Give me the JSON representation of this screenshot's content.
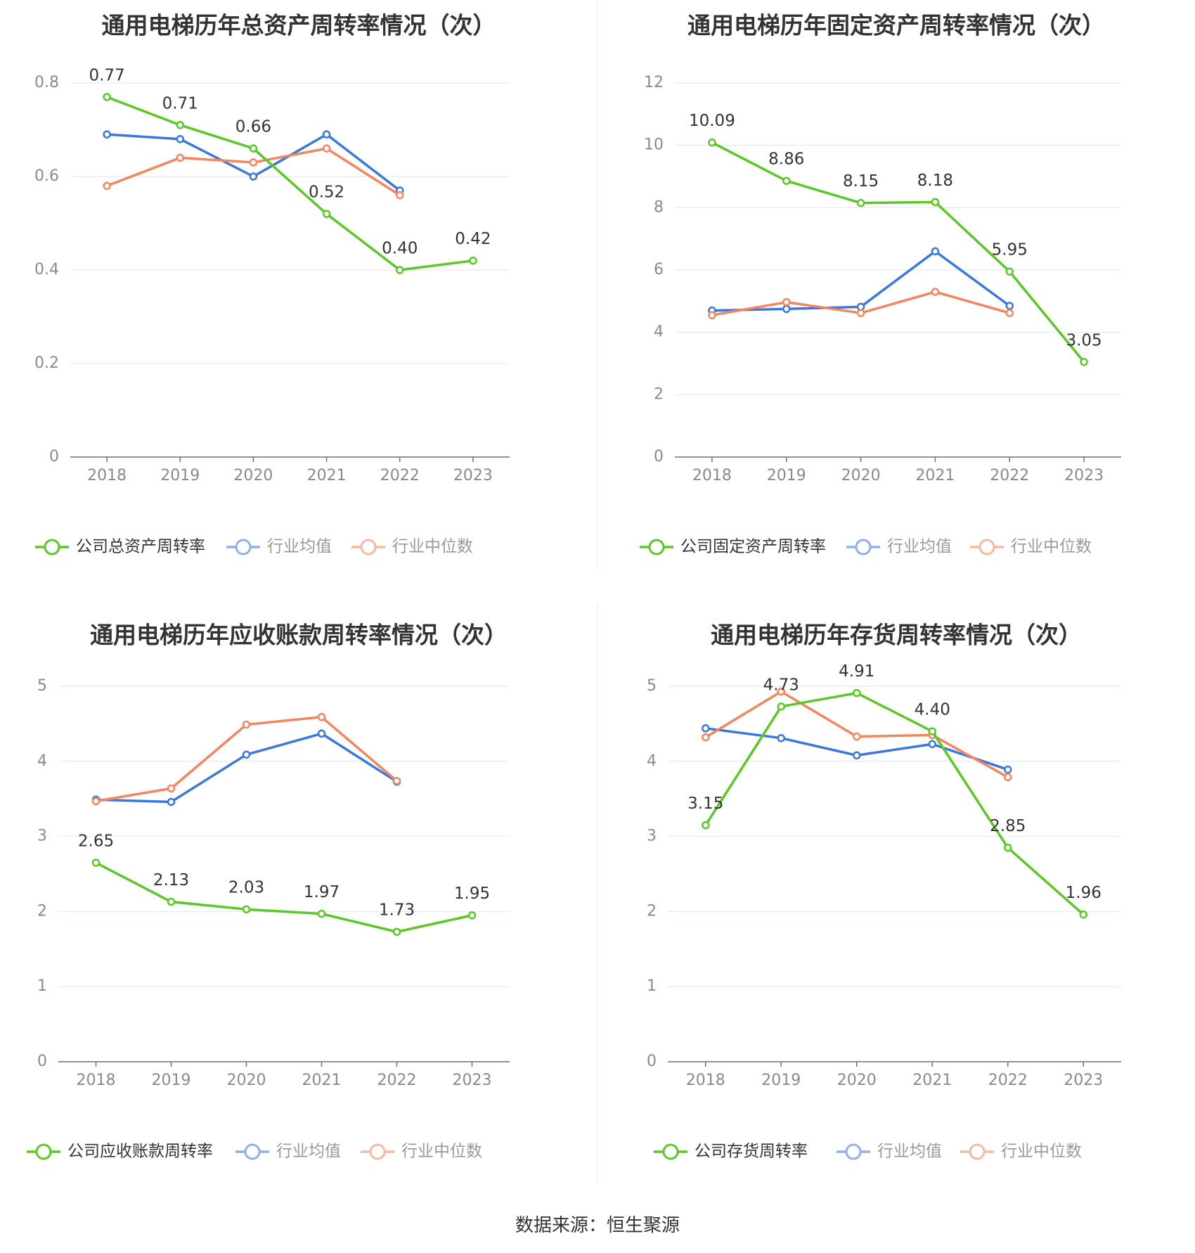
{
  "colors": {
    "company": "#5ac825",
    "avg": "#3a78e0",
    "median": "#f5855c",
    "grid": "#e0e6f1",
    "axis": "#6e7079",
    "tick_text": "#8a8a8a",
    "label_text": "#333333"
  },
  "source": "数据来源：恒生聚源",
  "chart_data": [
    {
      "type": "line",
      "title": "通用电梯历年总资产周转率情况（次）",
      "x": [
        "2018",
        "2019",
        "2020",
        "2021",
        "2022",
        "2023"
      ],
      "ylim": [
        0,
        0.8
      ],
      "yticks": [
        "0",
        "0.2",
        "0.4",
        "0.6",
        "0.8"
      ],
      "ytick_values": [
        0,
        0.2,
        0.4,
        0.6,
        0.8
      ],
      "legend_position": "bottom",
      "series": [
        {
          "name": "公司总资产周转率",
          "role": "company",
          "values": [
            0.77,
            0.71,
            0.66,
            0.52,
            0.4,
            0.42
          ],
          "labels": [
            "0.77",
            "0.71",
            "0.66",
            "0.52",
            "0.40",
            "0.42"
          ]
        },
        {
          "name": "行业均值",
          "role": "avg",
          "values": [
            0.69,
            0.68,
            0.6,
            0.69,
            0.57,
            null
          ]
        },
        {
          "name": "行业中位数",
          "role": "median",
          "values": [
            0.58,
            0.64,
            0.63,
            0.66,
            0.56,
            null
          ]
        }
      ]
    },
    {
      "type": "line",
      "title": "通用电梯历年固定资产周转率情况（次）",
      "x": [
        "2018",
        "2019",
        "2020",
        "2021",
        "2022",
        "2023"
      ],
      "ylim": [
        0,
        12
      ],
      "yticks": [
        "0",
        "2",
        "4",
        "6",
        "8",
        "10",
        "12"
      ],
      "ytick_values": [
        0,
        2,
        4,
        6,
        8,
        10,
        12
      ],
      "legend_position": "bottom",
      "series": [
        {
          "name": "公司固定资产周转率",
          "role": "company",
          "values": [
            10.09,
            8.86,
            8.15,
            8.18,
            5.95,
            3.05
          ],
          "labels": [
            "10.09",
            "8.86",
            "8.15",
            "8.18",
            "5.95",
            "3.05"
          ]
        },
        {
          "name": "行业均值",
          "role": "avg",
          "values": [
            4.7,
            4.75,
            4.82,
            6.6,
            4.85,
            null
          ]
        },
        {
          "name": "行业中位数",
          "role": "median",
          "values": [
            4.55,
            4.97,
            4.62,
            5.3,
            4.62,
            null
          ]
        }
      ]
    },
    {
      "type": "line",
      "title": "通用电梯历年应收账款周转率情况（次）",
      "x": [
        "2018",
        "2019",
        "2020",
        "2021",
        "2022",
        "2023"
      ],
      "ylim": [
        0,
        5
      ],
      "yticks": [
        "0",
        "1",
        "2",
        "3",
        "4",
        "5"
      ],
      "ytick_values": [
        0,
        1,
        2,
        3,
        4,
        5
      ],
      "legend_position": "bottom",
      "series": [
        {
          "name": "公司应收账款周转率",
          "role": "company",
          "values": [
            2.65,
            2.13,
            2.03,
            1.97,
            1.73,
            1.95
          ],
          "labels": [
            "2.65",
            "2.13",
            "2.03",
            "1.97",
            "1.73",
            "1.95"
          ]
        },
        {
          "name": "行业均值",
          "role": "avg",
          "values": [
            3.49,
            3.46,
            4.09,
            4.37,
            3.73,
            null
          ]
        },
        {
          "name": "行业中位数",
          "role": "median",
          "values": [
            3.47,
            3.64,
            4.49,
            4.59,
            3.74,
            null
          ]
        }
      ]
    },
    {
      "type": "line",
      "title": "通用电梯历年存货周转率情况（次）",
      "x": [
        "2018",
        "2019",
        "2020",
        "2021",
        "2022",
        "2023"
      ],
      "ylim": [
        0,
        5
      ],
      "yticks": [
        "0",
        "1",
        "2",
        "3",
        "4",
        "5"
      ],
      "ytick_values": [
        0,
        1,
        2,
        3,
        4,
        5
      ],
      "legend_position": "bottom",
      "series": [
        {
          "name": "公司存货周转率",
          "role": "company",
          "values": [
            3.15,
            4.73,
            4.91,
            4.4,
            2.85,
            1.96
          ],
          "labels": [
            "3.15",
            "4.73",
            "4.91",
            "4.40",
            "2.85",
            "1.96"
          ]
        },
        {
          "name": "行业均值",
          "role": "avg",
          "values": [
            4.44,
            4.31,
            4.08,
            4.23,
            3.89,
            null
          ]
        },
        {
          "name": "行业中位数",
          "role": "median",
          "values": [
            4.32,
            4.93,
            4.33,
            4.35,
            3.79,
            null
          ]
        }
      ]
    }
  ]
}
